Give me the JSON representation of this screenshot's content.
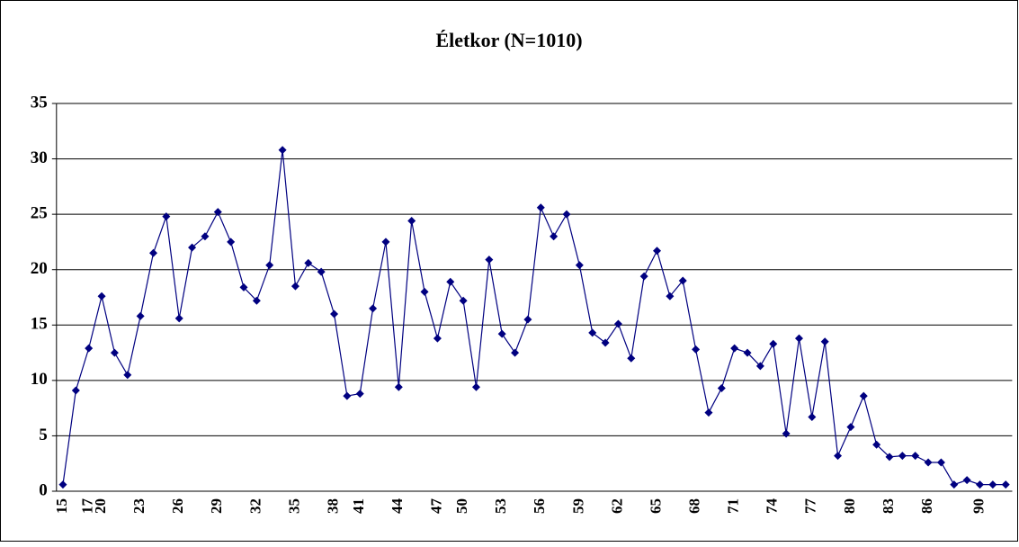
{
  "chart_data": {
    "type": "line",
    "title": "Életkor (N=1010)",
    "categories": [
      "15",
      null,
      "17",
      "20",
      null,
      null,
      "23",
      null,
      null,
      "26",
      null,
      null,
      "29",
      null,
      null,
      "32",
      null,
      null,
      "35",
      null,
      null,
      "38",
      null,
      "41",
      null,
      null,
      "44",
      null,
      null,
      "47",
      null,
      "50",
      null,
      null,
      "53",
      null,
      null,
      "56",
      null,
      null,
      "59",
      null,
      null,
      "62",
      null,
      null,
      "65",
      null,
      null,
      "68",
      null,
      null,
      "71",
      null,
      null,
      "74",
      null,
      null,
      "77",
      null,
      null,
      "80",
      null,
      null,
      "83",
      null,
      null,
      "86",
      null,
      null,
      null,
      "90",
      null,
      null
    ],
    "series": [
      {
        "name": "Életkor",
        "color": "#000080",
        "values": [
          0.6,
          9.1,
          12.9,
          17.6,
          12.5,
          10.5,
          15.8,
          21.5,
          24.8,
          15.6,
          22.0,
          23.0,
          25.2,
          22.5,
          18.4,
          17.2,
          20.4,
          30.8,
          18.5,
          20.6,
          19.8,
          16.0,
          8.6,
          8.8,
          16.5,
          22.5,
          9.4,
          24.4,
          18.0,
          13.8,
          18.9,
          17.2,
          9.4,
          20.9,
          14.2,
          12.5,
          15.5,
          25.6,
          23.0,
          25.0,
          20.4,
          14.3,
          13.4,
          15.1,
          12.0,
          19.4,
          21.7,
          17.6,
          19.0,
          12.8,
          7.1,
          9.3,
          12.9,
          12.5,
          11.3,
          13.3,
          5.2,
          13.8,
          6.7,
          13.5,
          3.2,
          5.8,
          8.6,
          4.2,
          3.1,
          3.2,
          3.2,
          2.6,
          2.6,
          0.6,
          1.0,
          0.6,
          0.6,
          0.6
        ]
      }
    ],
    "ylim": [
      0,
      35
    ],
    "yticks": [
      0,
      5,
      10,
      15,
      20,
      25,
      30,
      35
    ],
    "grid": true
  }
}
